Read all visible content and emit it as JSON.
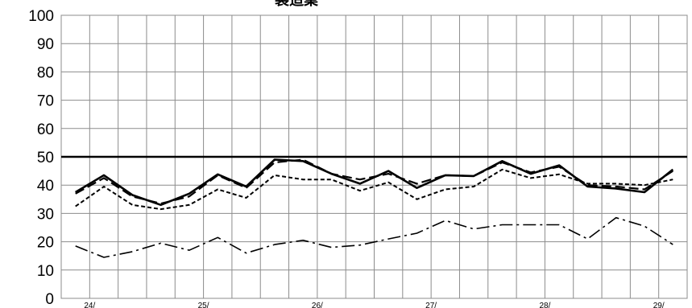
{
  "chart_data": {
    "type": "line",
    "title": "製造業",
    "xlabel": "",
    "ylabel": "",
    "ylim": [
      0,
      100
    ],
    "yticks": [
      0,
      10,
      20,
      30,
      40,
      50,
      60,
      70,
      80,
      90,
      100
    ],
    "x_tick_labels": [
      "24/",
      "25/",
      "26/",
      "27/",
      "28/",
      "29/"
    ],
    "x_tick_label_positions": [
      0.5,
      4.5,
      8.5,
      12.5,
      16.5,
      20.5
    ],
    "point_count": 22,
    "grid": true,
    "reference_line": {
      "value": 50,
      "color": "#000000"
    },
    "series": [
      {
        "style": "solid",
        "color": "#000000",
        "values": [
          37.5,
          43.5,
          36.5,
          33,
          37,
          43.8,
          39.5,
          49,
          48.5,
          44,
          40.5,
          45,
          39,
          43.5,
          43.2,
          48.5,
          44,
          47,
          39.5,
          38.8,
          37.5,
          45.5
        ]
      },
      {
        "style": "dash",
        "color": "#000000",
        "values": [
          37,
          42.5,
          36,
          33.5,
          36,
          43.5,
          39,
          48,
          49,
          44,
          42,
          44,
          40.5,
          43.5,
          43.2,
          48,
          44.5,
          46.5,
          40,
          39.5,
          38.5,
          45
        ]
      },
      {
        "style": "short-dash",
        "color": "#000000",
        "values": [
          32.5,
          39.5,
          33,
          31.5,
          33,
          38.5,
          35.5,
          43.5,
          42,
          42,
          38,
          41,
          35,
          38.5,
          39.5,
          45.5,
          42.5,
          43.8,
          40.5,
          40.5,
          40,
          42
        ]
      },
      {
        "style": "dash-dot",
        "color": "#000000",
        "values": [
          18.5,
          14.5,
          16.5,
          19.5,
          17,
          21.5,
          16,
          19,
          20.5,
          18,
          18.8,
          21,
          23,
          27.5,
          24.5,
          26,
          26,
          26,
          21,
          28.5,
          25.5,
          19
        ]
      }
    ]
  }
}
